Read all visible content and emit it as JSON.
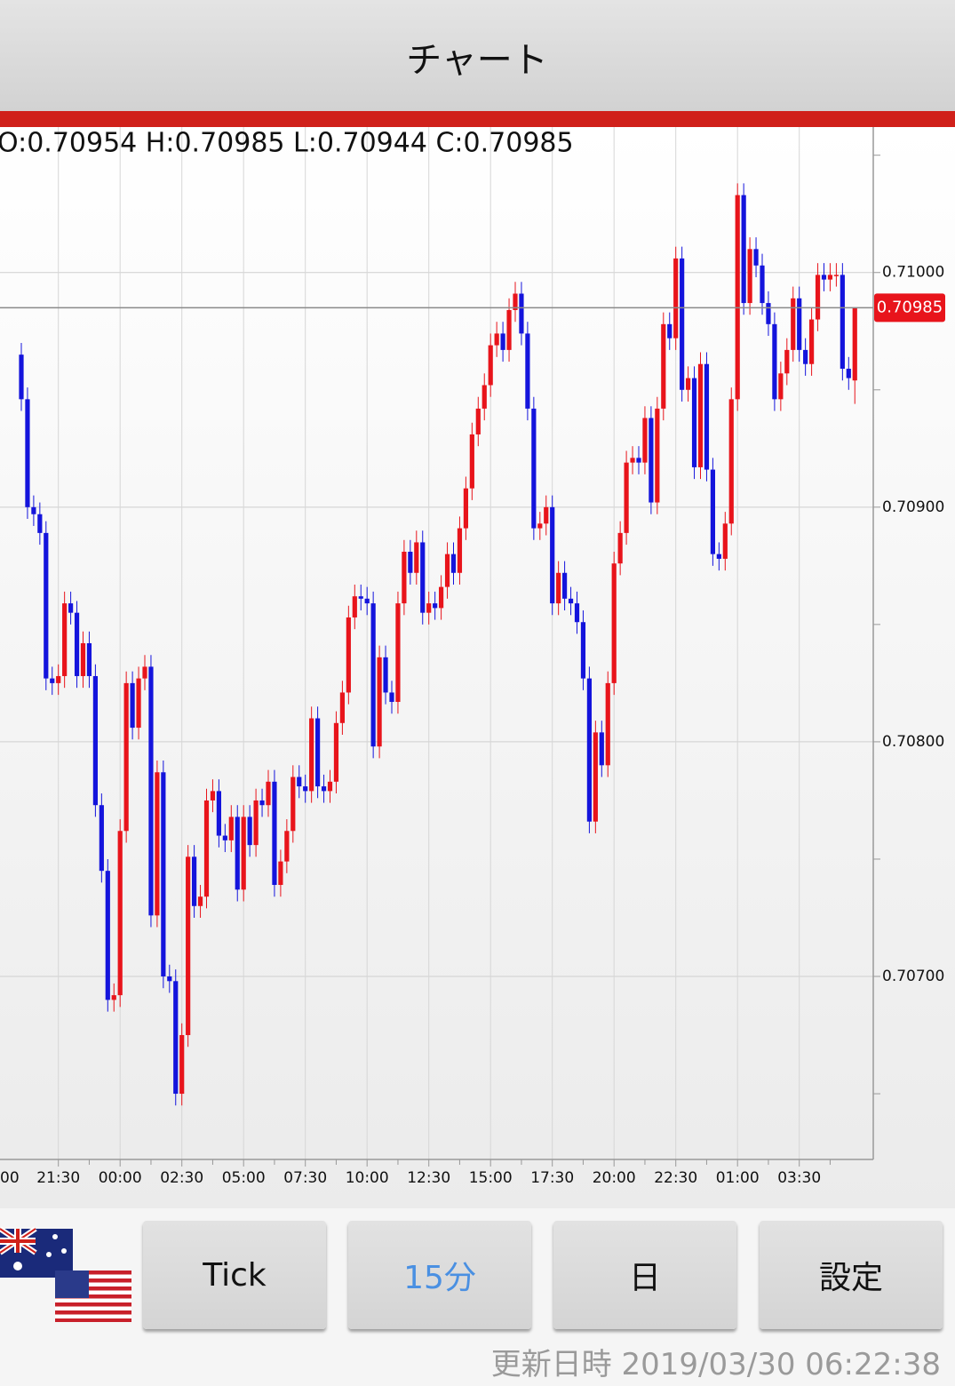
{
  "header": {
    "title": "チャート"
  },
  "chart_data": {
    "type": "candlestick",
    "ohlc_label": "O:0.70954 H:0.70985 L:0.70944 C:0.70985",
    "x_cut_label": "00",
    "categories": [
      null,
      null,
      null,
      null,
      null,
      null,
      "21:30",
      null,
      null,
      null,
      null,
      null,
      null,
      null,
      null,
      null,
      "00:00",
      null,
      null,
      null,
      null,
      null,
      null,
      null,
      null,
      null,
      "02:30",
      null,
      null,
      null,
      null,
      null,
      null,
      null,
      null,
      null,
      "05:00",
      null,
      null,
      null,
      null,
      null,
      null,
      null,
      null,
      null,
      "07:30",
      null,
      null,
      null,
      null,
      null,
      null,
      null,
      null,
      null,
      "10:00",
      null,
      null,
      null,
      null,
      null,
      null,
      null,
      null,
      null,
      "12:30",
      null,
      null,
      null,
      null,
      null,
      null,
      null,
      null,
      null,
      "15:00",
      null,
      null,
      null,
      null,
      null,
      null,
      null,
      null,
      null,
      "17:30",
      null,
      null,
      null,
      null,
      null,
      null,
      null,
      null,
      null,
      "20:00",
      null,
      null,
      null,
      null,
      null,
      null,
      null,
      null,
      null,
      "22:30",
      null,
      null,
      null,
      null,
      null,
      null,
      null,
      null,
      null,
      "01:00",
      null,
      null,
      null,
      null,
      null,
      null,
      null,
      null,
      null,
      "03:30",
      null,
      null,
      null,
      null,
      null,
      null,
      null,
      null,
      null
    ],
    "open": [
      0.70965,
      0.70946,
      0.709,
      0.70897,
      0.70889,
      0.70827,
      0.70825,
      0.70828,
      0.70859,
      0.70855,
      0.70828,
      0.70842,
      0.70828,
      0.70773,
      0.70745,
      0.7069,
      0.70692,
      0.70762,
      0.70825,
      0.70806,
      0.70827,
      0.70832,
      0.70726,
      0.70787,
      0.707,
      0.70698,
      0.7065,
      0.70675,
      0.70751,
      0.7073,
      0.70734,
      0.70775,
      0.70779,
      0.7076,
      0.70758,
      0.70768,
      0.70737,
      0.70768,
      0.70756,
      0.70775,
      0.70773,
      0.70783,
      0.70739,
      0.70749,
      0.70762,
      0.70785,
      0.70781,
      0.70779,
      0.7081,
      0.70781,
      0.70779,
      0.70783,
      0.70808,
      0.70821,
      0.70853,
      0.70862,
      0.70861,
      0.70859,
      0.70798,
      0.70836,
      0.70821,
      0.70817,
      0.70859,
      0.70881,
      0.70872,
      0.70885,
      0.70855,
      0.70859,
      0.70857,
      0.70866,
      0.7088,
      0.70872,
      0.70891,
      0.70908,
      0.70931,
      0.70942,
      0.70952,
      0.70969,
      0.70974,
      0.70967,
      0.70984,
      0.70991,
      0.70974,
      0.70942,
      0.70891,
      0.70893,
      0.709,
      0.70859,
      0.70872,
      0.70861,
      0.70859,
      0.70851,
      0.70827,
      0.70766,
      0.70804,
      0.7079,
      0.70825,
      0.70876,
      0.70889,
      0.70919,
      0.70921,
      0.70919,
      0.70938,
      0.70902,
      0.70942,
      0.70978,
      0.70972,
      0.71006,
      0.7095,
      0.70955,
      0.70917,
      0.70961,
      0.70916,
      0.7088,
      0.70878,
      0.70893,
      0.70946,
      0.71033,
      0.70987,
      0.7101,
      0.71003,
      0.70987,
      0.70978,
      0.70946,
      0.70957,
      0.70967,
      0.70989,
      0.70967,
      0.70961,
      0.7098,
      0.70999,
      0.70997,
      0.70999,
      0.70999,
      0.70959,
      0.70954
    ],
    "high": [
      0.7097,
      0.70951,
      0.70905,
      0.70902,
      0.70894,
      0.70832,
      0.70833,
      0.70864,
      0.70864,
      0.7086,
      0.70847,
      0.70847,
      0.70833,
      0.70778,
      0.7075,
      0.70697,
      0.70767,
      0.7083,
      0.7083,
      0.70832,
      0.70837,
      0.70837,
      0.70792,
      0.70792,
      0.70705,
      0.70703,
      0.7068,
      0.70756,
      0.70756,
      0.70739,
      0.7078,
      0.70784,
      0.70784,
      0.70765,
      0.70773,
      0.70773,
      0.70773,
      0.70773,
      0.7078,
      0.7078,
      0.70788,
      0.70788,
      0.70754,
      0.70767,
      0.7079,
      0.7079,
      0.70786,
      0.70815,
      0.70815,
      0.70786,
      0.70788,
      0.70813,
      0.70826,
      0.70858,
      0.70867,
      0.70867,
      0.70866,
      0.70864,
      0.70841,
      0.70841,
      0.70826,
      0.70864,
      0.70886,
      0.70886,
      0.7089,
      0.7089,
      0.70864,
      0.70864,
      0.70871,
      0.70885,
      0.70885,
      0.70896,
      0.70913,
      0.70936,
      0.70947,
      0.70957,
      0.70974,
      0.70979,
      0.70979,
      0.70989,
      0.70996,
      0.70996,
      0.70979,
      0.70947,
      0.70898,
      0.70905,
      0.70905,
      0.70877,
      0.70877,
      0.70866,
      0.70864,
      0.70856,
      0.70832,
      0.70809,
      0.70809,
      0.7083,
      0.70881,
      0.70894,
      0.70924,
      0.70926,
      0.70926,
      0.70943,
      0.70943,
      0.70947,
      0.70983,
      0.70983,
      0.71011,
      0.71011,
      0.7096,
      0.7096,
      0.70966,
      0.70966,
      0.70921,
      0.70885,
      0.70898,
      0.70951,
      0.71038,
      0.71038,
      0.71015,
      0.71015,
      0.71008,
      0.70992,
      0.70983,
      0.70962,
      0.70972,
      0.70994,
      0.70994,
      0.70972,
      0.70985,
      0.71004,
      0.71004,
      0.71004,
      0.71004,
      0.71004,
      0.70964,
      0.70985
    ],
    "low": [
      0.70941,
      0.70895,
      0.70892,
      0.70884,
      0.70822,
      0.7082,
      0.7082,
      0.70823,
      0.7085,
      0.70823,
      0.70823,
      0.70823,
      0.70768,
      0.7074,
      0.70685,
      0.70685,
      0.70687,
      0.70757,
      0.70801,
      0.70801,
      0.70822,
      0.70721,
      0.70721,
      0.70695,
      0.70693,
      0.70645,
      0.70645,
      0.7067,
      0.70725,
      0.70725,
      0.70729,
      0.7077,
      0.70755,
      0.70753,
      0.70753,
      0.70732,
      0.70732,
      0.70751,
      0.70751,
      0.70768,
      0.70768,
      0.70734,
      0.70734,
      0.70744,
      0.70757,
      0.70776,
      0.70774,
      0.70774,
      0.70776,
      0.70774,
      0.70774,
      0.70778,
      0.70803,
      0.70816,
      0.70848,
      0.70856,
      0.70854,
      0.70793,
      0.70793,
      0.70816,
      0.70812,
      0.70812,
      0.70854,
      0.70867,
      0.70867,
      0.7085,
      0.7085,
      0.70852,
      0.70852,
      0.70861,
      0.70867,
      0.70867,
      0.70886,
      0.70903,
      0.70926,
      0.70937,
      0.70947,
      0.70964,
      0.70962,
      0.70962,
      0.70979,
      0.70969,
      0.70937,
      0.70886,
      0.70886,
      0.70888,
      0.70854,
      0.70854,
      0.70856,
      0.70854,
      0.70846,
      0.70822,
      0.70761,
      0.70761,
      0.70785,
      0.70785,
      0.7082,
      0.70871,
      0.70884,
      0.70914,
      0.70914,
      0.70914,
      0.70897,
      0.70897,
      0.70937,
      0.70967,
      0.70967,
      0.70945,
      0.70945,
      0.70912,
      0.70912,
      0.70911,
      0.70875,
      0.70873,
      0.70873,
      0.70888,
      0.70941,
      0.70982,
      0.70982,
      0.70998,
      0.70982,
      0.70973,
      0.70941,
      0.70941,
      0.70952,
      0.70962,
      0.70962,
      0.70956,
      0.70956,
      0.70975,
      0.70992,
      0.70992,
      0.70994,
      0.70954,
      0.7095,
      0.70944
    ],
    "close": [
      0.70946,
      0.709,
      0.70897,
      0.70889,
      0.70827,
      0.70825,
      0.70828,
      0.70859,
      0.70855,
      0.70828,
      0.70842,
      0.70828,
      0.70773,
      0.70745,
      0.7069,
      0.70692,
      0.70762,
      0.70825,
      0.70806,
      0.70827,
      0.70832,
      0.70726,
      0.70787,
      0.707,
      0.70698,
      0.7065,
      0.70675,
      0.70751,
      0.7073,
      0.70734,
      0.70775,
      0.70779,
      0.7076,
      0.70758,
      0.70768,
      0.70737,
      0.70768,
      0.70756,
      0.70775,
      0.70773,
      0.70783,
      0.70739,
      0.70749,
      0.70762,
      0.70785,
      0.70781,
      0.70779,
      0.7081,
      0.70781,
      0.70779,
      0.70783,
      0.70808,
      0.70821,
      0.70853,
      0.70862,
      0.70861,
      0.70859,
      0.70798,
      0.70836,
      0.70821,
      0.70817,
      0.70859,
      0.70881,
      0.70872,
      0.70885,
      0.70855,
      0.70859,
      0.70857,
      0.70866,
      0.7088,
      0.70872,
      0.70891,
      0.70908,
      0.70931,
      0.70942,
      0.70952,
      0.70969,
      0.70974,
      0.70967,
      0.70984,
      0.70991,
      0.70974,
      0.70942,
      0.70891,
      0.70893,
      0.709,
      0.70859,
      0.70872,
      0.70861,
      0.70859,
      0.70851,
      0.70827,
      0.70766,
      0.70804,
      0.7079,
      0.70825,
      0.70876,
      0.70889,
      0.70919,
      0.70921,
      0.70919,
      0.70938,
      0.70902,
      0.70942,
      0.70978,
      0.70972,
      0.71006,
      0.7095,
      0.70955,
      0.70917,
      0.70961,
      0.70916,
      0.7088,
      0.70878,
      0.70893,
      0.70946,
      0.71033,
      0.70987,
      0.7101,
      0.71003,
      0.70987,
      0.70978,
      0.70946,
      0.70957,
      0.70967,
      0.70989,
      0.70967,
      0.70961,
      0.7098,
      0.70999,
      0.70997,
      0.70999,
      0.70999,
      0.70959,
      0.70955,
      0.70985
    ],
    "up_color": "#e8141b",
    "down_color": "#1414dc",
    "ylim": [
      0.70622,
      0.71062
    ],
    "yticks": [
      {
        "value": 0.707,
        "label": "0.70700"
      },
      {
        "value": 0.708,
        "label": "0.70800"
      },
      {
        "value": 0.709,
        "label": "0.70900"
      },
      {
        "value": 0.71,
        "label": "0.71000"
      }
    ],
    "minor_yticks": [
      0.7065,
      0.7075,
      0.7085,
      0.7095,
      0.7105
    ],
    "last_price": {
      "value": 0.70985,
      "label": "0.70985"
    },
    "last_price_color": "#e8141b",
    "grid": true
  },
  "buttons": [
    "Tick",
    "15分",
    "日",
    "設定"
  ],
  "selected_button": 1,
  "selected_color": "#4a90e2",
  "updated_label": "更新日時",
  "updated_time": "2019/03/30 06:22:38"
}
